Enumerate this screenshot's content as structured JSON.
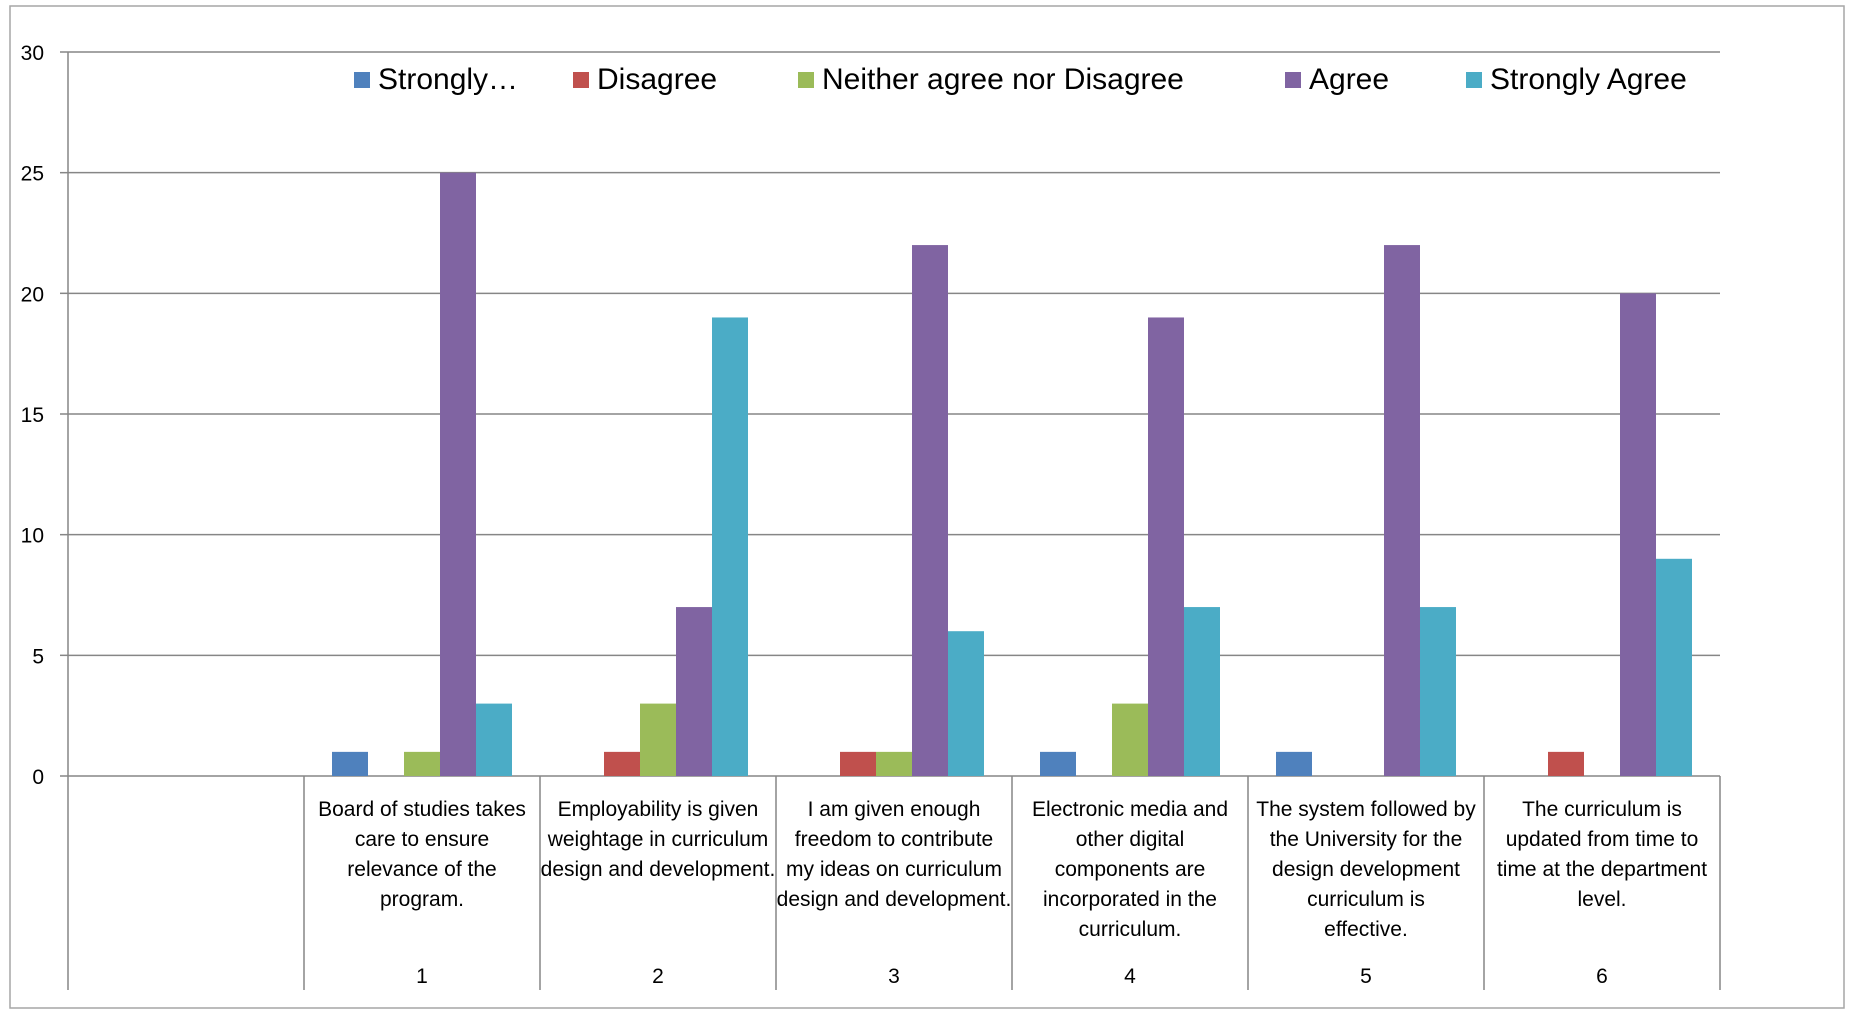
{
  "chart_data": {
    "type": "bar",
    "title": "",
    "xlabel": "",
    "ylabel": "",
    "ylim": [
      0,
      30
    ],
    "yticks": [
      0,
      5,
      10,
      15,
      20,
      25,
      30
    ],
    "grid": true,
    "legend_position": "top",
    "slots": [
      "",
      "1",
      "2",
      "3",
      "4",
      "5",
      "6"
    ],
    "category_labels": [
      "",
      "Board of studies takes care to ensure relevance of the program.",
      "Employability is given weightage in curriculum design and development.",
      "I am given enough freedom to contribute my ideas on curriculum design and development.",
      "Electronic media and other digital components are incorporated in the curriculum.",
      "The system followed by the University for the design development curriculum is effective.",
      "The curriculum is updated from time to time at the department level."
    ],
    "series": [
      {
        "name": "Strongly…",
        "color": "#4f81bd",
        "values": [
          null,
          1,
          0,
          0,
          1,
          1,
          0
        ]
      },
      {
        "name": "Disagree",
        "color": "#c0504d",
        "values": [
          null,
          0,
          1,
          1,
          0,
          0,
          1
        ]
      },
      {
        "name": "Neither agree nor Disagree",
        "color": "#9bbb59",
        "values": [
          null,
          1,
          3,
          1,
          3,
          0,
          0
        ]
      },
      {
        "name": "Agree",
        "color": "#8064a2",
        "values": [
          null,
          25,
          7,
          22,
          19,
          22,
          20
        ]
      },
      {
        "name": "Strongly Agree",
        "color": "#4bacc6",
        "values": [
          null,
          3,
          19,
          6,
          7,
          7,
          9
        ]
      }
    ]
  }
}
